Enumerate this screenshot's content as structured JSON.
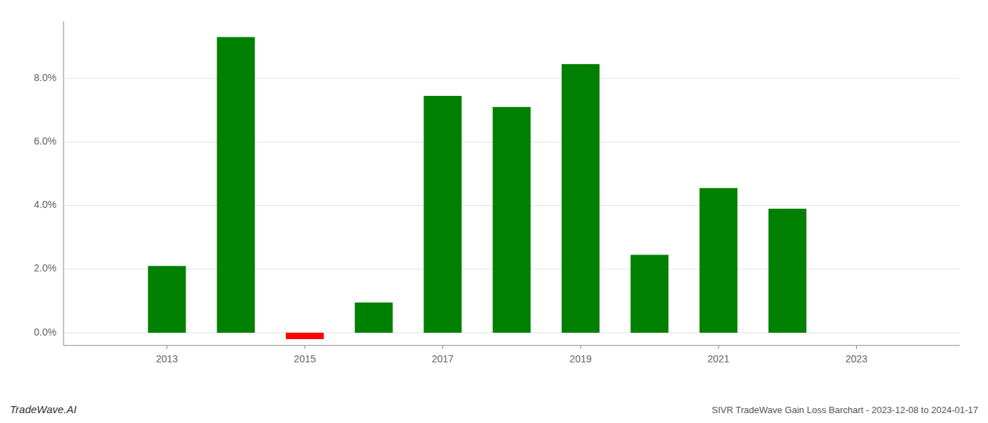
{
  "chart_data": {
    "type": "bar",
    "title": "SIVR TradeWave Gain Loss Barchart - 2023-12-08 to 2024-01-17",
    "annotations": [
      "TradeWave.AI"
    ],
    "x": [
      2013,
      2014,
      2015,
      2016,
      2017,
      2018,
      2019,
      2020,
      2021,
      2022
    ],
    "values": [
      0.021,
      0.093,
      -0.002,
      0.0095,
      0.0745,
      0.071,
      0.0845,
      0.0245,
      0.0455,
      0.039
    ],
    "colors": [
      "#008000",
      "#008000",
      "#ff0000",
      "#008000",
      "#008000",
      "#008000",
      "#008000",
      "#008000",
      "#008000",
      "#008000"
    ],
    "xlim": [
      2011.5,
      2024.5
    ],
    "xticks": [
      2013,
      2015,
      2017,
      2019,
      2021,
      2023
    ],
    "ylim": [
      -0.004,
      0.098
    ],
    "yticks": [
      {
        "value": 0.0,
        "label": "0.0%"
      },
      {
        "value": 0.02,
        "label": "2.0%"
      },
      {
        "value": 0.04,
        "label": "4.0%"
      },
      {
        "value": 0.06,
        "label": "6.0%"
      },
      {
        "value": 0.08,
        "label": "8.0%"
      }
    ],
    "grid": true
  }
}
